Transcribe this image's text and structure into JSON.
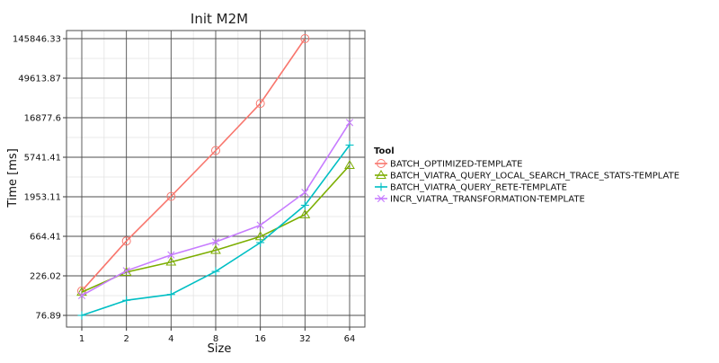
{
  "chart_data": {
    "type": "line",
    "title": "Init M2M",
    "xlabel": "Size",
    "ylabel": "Time [ms]",
    "x_scale": "log2",
    "y_scale": "log",
    "categories": [
      "1",
      "2",
      "4",
      "8",
      "16",
      "32",
      "64"
    ],
    "x": [
      1,
      2,
      4,
      8,
      16,
      32,
      64
    ],
    "y_ticks": [
      {
        "value": 76.89,
        "label": "76.89"
      },
      {
        "value": 226.02,
        "label": "226.02"
      },
      {
        "value": 664.41,
        "label": "664.41"
      },
      {
        "value": 1953.11,
        "label": "1953.11"
      },
      {
        "value": 5741.41,
        "label": "5741.41"
      },
      {
        "value": 16877.6,
        "label": "16877.6"
      },
      {
        "value": 49613.87,
        "label": "49613.87"
      },
      {
        "value": 145846.33,
        "label": "145846.33"
      }
    ],
    "ylim": [
      76.89,
      145846.33
    ],
    "grid": true,
    "legend": {
      "title": "Tool",
      "position": "right"
    },
    "series": [
      {
        "name": "BATCH_OPTIMIZED-TEMPLATE",
        "color": "#F8766D",
        "marker": "circle",
        "x": [
          1,
          2,
          4,
          8,
          16,
          32
        ],
        "values": [
          150,
          585,
          1970,
          6900,
          24900,
          145846.33
        ]
      },
      {
        "name": "BATCH_VIATRA_QUERY_LOCAL_SEARCH_TRACE_STATS-TEMPLATE",
        "color": "#7CAE00",
        "marker": "triangle",
        "x": [
          1,
          2,
          4,
          8,
          16,
          32,
          64
        ],
        "values": [
          145,
          250,
          330,
          455,
          660,
          1200,
          4600
        ]
      },
      {
        "name": "BATCH_VIATRA_QUERY_RETE-TEMPLATE",
        "color": "#00BFC4",
        "marker": "plus",
        "x": [
          1,
          2,
          4,
          8,
          16,
          32,
          64
        ],
        "values": [
          76.89,
          116,
          136,
          255,
          560,
          1550,
          8000
        ]
      },
      {
        "name": "INCR_VIATRA_TRANSFORMATION-TEMPLATE",
        "color": "#C77CFF",
        "marker": "cross",
        "x": [
          1,
          2,
          4,
          8,
          16,
          32,
          64
        ],
        "values": [
          132,
          260,
          400,
          570,
          900,
          2200,
          14800
        ]
      }
    ]
  }
}
